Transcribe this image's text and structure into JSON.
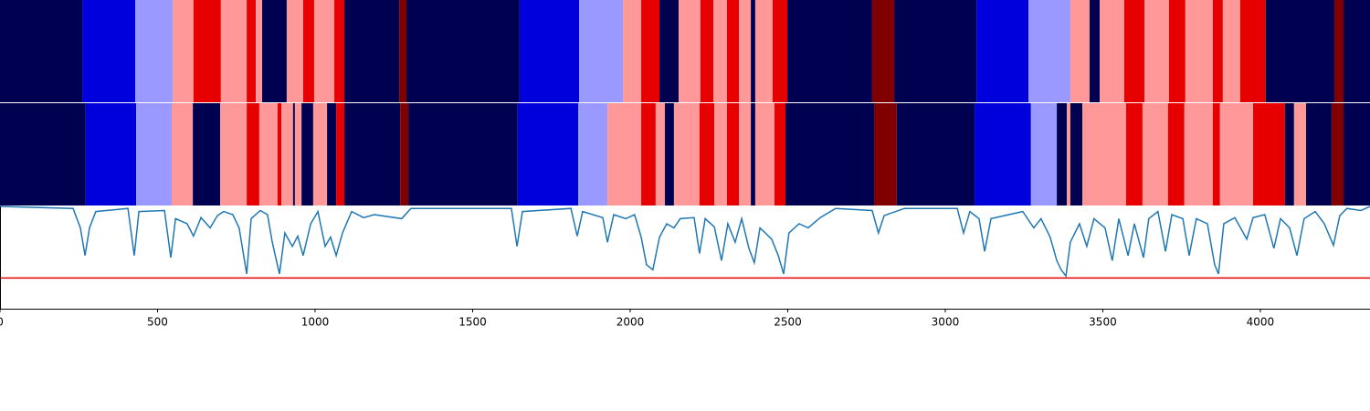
{
  "chart_data": {
    "type": "segmentation",
    "xlim": [
      0,
      4348
    ],
    "xticks": [
      0,
      500,
      1000,
      1500,
      2000,
      2500,
      3000,
      3500,
      4000
    ],
    "rows": [
      {
        "segments": [
          [
            0,
            261,
            "#000050"
          ],
          [
            261,
            429,
            "#0000dd"
          ],
          [
            429,
            548,
            "#9999ff"
          ],
          [
            548,
            614,
            "#ff9999"
          ],
          [
            614,
            701,
            "#e60000"
          ],
          [
            701,
            783,
            "#ff9999"
          ],
          [
            783,
            812,
            "#e60000"
          ],
          [
            812,
            832,
            "#ff9999"
          ],
          [
            832,
            910,
            "#000050"
          ],
          [
            910,
            962,
            "#ff9999"
          ],
          [
            962,
            997,
            "#e60000"
          ],
          [
            997,
            1061,
            "#ff9999"
          ],
          [
            1061,
            1093,
            "#e60000"
          ],
          [
            1093,
            1267,
            "#000050"
          ],
          [
            1267,
            1290,
            "#800000"
          ],
          [
            1290,
            1649,
            "#000050"
          ],
          [
            1649,
            1838,
            "#0000dd"
          ],
          [
            1838,
            1977,
            "#9999ff"
          ],
          [
            1977,
            2035,
            "#ff9999"
          ],
          [
            2035,
            2093,
            "#e60000"
          ],
          [
            2093,
            2154,
            "#000050"
          ],
          [
            2154,
            2223,
            "#ff9999"
          ],
          [
            2223,
            2264,
            "#e60000"
          ],
          [
            2264,
            2307,
            "#ff9999"
          ],
          [
            2307,
            2345,
            "#e60000"
          ],
          [
            2345,
            2383,
            "#ff9999"
          ],
          [
            2383,
            2397,
            "#000050"
          ],
          [
            2397,
            2452,
            "#ff9999"
          ],
          [
            2452,
            2499,
            "#e60000"
          ],
          [
            2499,
            2768,
            "#000050"
          ],
          [
            2768,
            2838,
            "#800000"
          ],
          [
            2838,
            3099,
            "#000050"
          ],
          [
            3099,
            3264,
            "#0000dd"
          ],
          [
            3264,
            3397,
            "#9999ff"
          ],
          [
            3397,
            3458,
            "#ff9999"
          ],
          [
            3458,
            3490,
            "#000050"
          ],
          [
            3490,
            3568,
            "#ff9999"
          ],
          [
            3568,
            3632,
            "#e60000"
          ],
          [
            3632,
            3710,
            "#ff9999"
          ],
          [
            3710,
            3762,
            "#e60000"
          ],
          [
            3762,
            3849,
            "#ff9999"
          ],
          [
            3849,
            3881,
            "#e60000"
          ],
          [
            3881,
            3936,
            "#ff9999"
          ],
          [
            3936,
            4017,
            "#e60000"
          ],
          [
            4017,
            4235,
            "#000050"
          ],
          [
            4235,
            4264,
            "#800000"
          ],
          [
            4264,
            4348,
            "#000050"
          ]
        ]
      },
      {
        "segments": [
          [
            0,
            272,
            "#000050"
          ],
          [
            272,
            432,
            "#0000dd"
          ],
          [
            432,
            545,
            "#9999ff"
          ],
          [
            545,
            612,
            "#ff9999"
          ],
          [
            612,
            699,
            "#000050"
          ],
          [
            699,
            783,
            "#ff9999"
          ],
          [
            783,
            823,
            "#e60000"
          ],
          [
            823,
            881,
            "#ff9999"
          ],
          [
            881,
            893,
            "#e60000"
          ],
          [
            893,
            930,
            "#ff9999"
          ],
          [
            930,
            936,
            "#000050"
          ],
          [
            936,
            957,
            "#ff9999"
          ],
          [
            957,
            994,
            "#000050"
          ],
          [
            994,
            1038,
            "#ff9999"
          ],
          [
            1038,
            1067,
            "#000050"
          ],
          [
            1067,
            1093,
            "#e60000"
          ],
          [
            1093,
            1270,
            "#000050"
          ],
          [
            1270,
            1296,
            "#800000"
          ],
          [
            1296,
            1643,
            "#000050"
          ],
          [
            1643,
            1835,
            "#0000dd"
          ],
          [
            1835,
            1928,
            "#9999ff"
          ],
          [
            1928,
            2035,
            "#ff9999"
          ],
          [
            2035,
            2081,
            "#e60000"
          ],
          [
            2081,
            2110,
            "#ff9999"
          ],
          [
            2110,
            2139,
            "#000050"
          ],
          [
            2139,
            2220,
            "#ff9999"
          ],
          [
            2220,
            2267,
            "#e60000"
          ],
          [
            2267,
            2307,
            "#ff9999"
          ],
          [
            2307,
            2345,
            "#e60000"
          ],
          [
            2345,
            2383,
            "#ff9999"
          ],
          [
            2383,
            2397,
            "#000050"
          ],
          [
            2397,
            2458,
            "#ff9999"
          ],
          [
            2458,
            2493,
            "#e60000"
          ],
          [
            2493,
            2774,
            "#000050"
          ],
          [
            2774,
            2846,
            "#800000"
          ],
          [
            2846,
            3093,
            "#000050"
          ],
          [
            3093,
            3272,
            "#0000dd"
          ],
          [
            3272,
            3354,
            "#9999ff"
          ],
          [
            3354,
            3386,
            "#000050"
          ],
          [
            3386,
            3397,
            "#ff9999"
          ],
          [
            3397,
            3435,
            "#000050"
          ],
          [
            3435,
            3574,
            "#ff9999"
          ],
          [
            3574,
            3626,
            "#e60000"
          ],
          [
            3626,
            3707,
            "#ff9999"
          ],
          [
            3707,
            3759,
            "#e60000"
          ],
          [
            3759,
            3849,
            "#ff9999"
          ],
          [
            3849,
            3872,
            "#e60000"
          ],
          [
            3872,
            3977,
            "#ff9999"
          ],
          [
            3977,
            4078,
            "#e60000"
          ],
          [
            4078,
            4107,
            "#000050"
          ],
          [
            4107,
            4145,
            "#ff9999"
          ],
          [
            4145,
            4226,
            "#000050"
          ],
          [
            4226,
            4264,
            "#800000"
          ],
          [
            4264,
            4348,
            "#000050"
          ]
        ]
      }
    ],
    "line": {
      "color": "#1f77b4",
      "ylim": [
        0,
        1
      ],
      "threshold": 0.3,
      "threshold_color": "#e60000",
      "x": [
        0,
        232,
        255,
        270,
        284,
        304,
        406,
        426,
        441,
        522,
        542,
        557,
        594,
        614,
        638,
        667,
        690,
        710,
        739,
        759,
        783,
        797,
        826,
        849,
        864,
        887,
        904,
        928,
        945,
        962,
        986,
        1009,
        1032,
        1049,
        1067,
        1087,
        1116,
        1154,
        1188,
        1275,
        1304,
        1623,
        1641,
        1658,
        1812,
        1832,
        1849,
        1913,
        1928,
        1948,
        1986,
        2014,
        2035,
        2052,
        2072,
        2093,
        2116,
        2139,
        2159,
        2203,
        2220,
        2238,
        2267,
        2290,
        2310,
        2333,
        2354,
        2377,
        2394,
        2412,
        2449,
        2470,
        2487,
        2504,
        2536,
        2565,
        2603,
        2652,
        2768,
        2788,
        2806,
        2870,
        3038,
        3058,
        3078,
        3107,
        3125,
        3145,
        3246,
        3281,
        3304,
        3333,
        3354,
        3368,
        3383,
        3397,
        3426,
        3449,
        3472,
        3507,
        3530,
        3551,
        3580,
        3600,
        3629,
        3646,
        3675,
        3699,
        3719,
        3754,
        3774,
        3797,
        3832,
        3855,
        3867,
        3884,
        3919,
        3957,
        3977,
        4014,
        4043,
        4064,
        4093,
        4116,
        4139,
        4174,
        4203,
        4232,
        4252,
        4275,
        4319,
        4348
      ],
      "values": [
        1.0,
        0.98,
        0.79,
        0.52,
        0.79,
        0.95,
        0.98,
        0.52,
        0.95,
        0.96,
        0.5,
        0.88,
        0.83,
        0.71,
        0.89,
        0.79,
        0.91,
        0.95,
        0.92,
        0.79,
        0.34,
        0.88,
        0.96,
        0.92,
        0.65,
        0.34,
        0.74,
        0.61,
        0.71,
        0.52,
        0.83,
        0.95,
        0.61,
        0.7,
        0.52,
        0.74,
        0.95,
        0.89,
        0.92,
        0.88,
        0.98,
        0.98,
        0.61,
        0.95,
        0.98,
        0.71,
        0.95,
        0.89,
        0.65,
        0.92,
        0.88,
        0.92,
        0.7,
        0.43,
        0.38,
        0.7,
        0.83,
        0.79,
        0.88,
        0.89,
        0.54,
        0.88,
        0.8,
        0.47,
        0.83,
        0.65,
        0.88,
        0.59,
        0.45,
        0.79,
        0.68,
        0.52,
        0.34,
        0.74,
        0.83,
        0.79,
        0.89,
        0.98,
        0.96,
        0.74,
        0.91,
        0.98,
        0.98,
        0.74,
        0.95,
        0.88,
        0.56,
        0.88,
        0.95,
        0.79,
        0.88,
        0.7,
        0.47,
        0.38,
        0.32,
        0.65,
        0.83,
        0.61,
        0.88,
        0.79,
        0.47,
        0.88,
        0.52,
        0.83,
        0.5,
        0.88,
        0.95,
        0.56,
        0.92,
        0.88,
        0.52,
        0.88,
        0.83,
        0.43,
        0.34,
        0.83,
        0.89,
        0.68,
        0.89,
        0.92,
        0.59,
        0.88,
        0.79,
        0.52,
        0.88,
        0.95,
        0.83,
        0.62,
        0.91,
        0.98,
        0.96,
        1.0
      ]
    }
  }
}
